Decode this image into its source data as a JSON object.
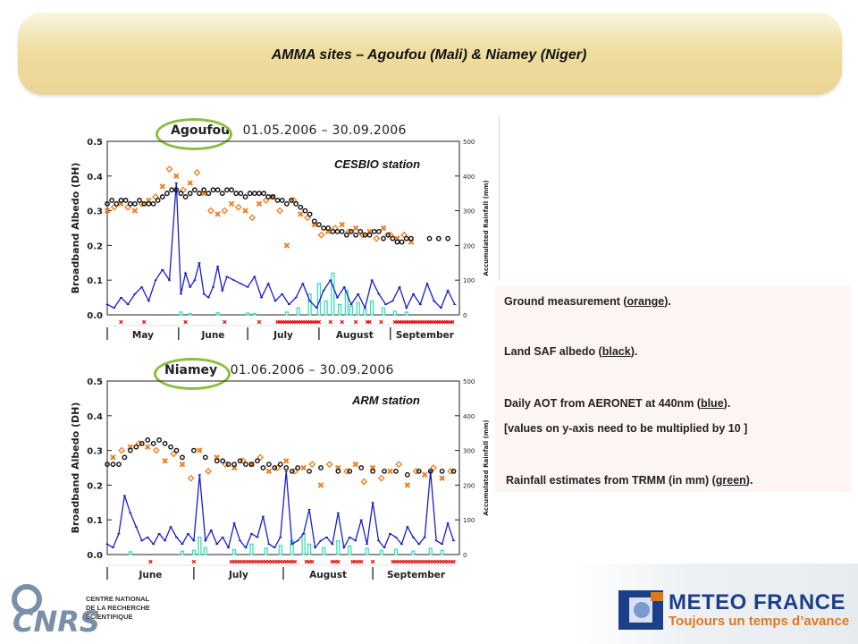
{
  "page": {
    "title": "AMMA sites – Agoufou (Mali) & Niamey (Niger)"
  },
  "legend_panel": {
    "rows": [
      {
        "prefix": "Ground measurement (",
        "key": "orange",
        "suffix": ")."
      },
      {
        "prefix": "Land SAF albedo (",
        "key": "black",
        "suffix": ")."
      },
      {
        "prefix": "Daily AOT from AERONET at 440nm (",
        "key": "blue",
        "suffix": ")."
      },
      {
        "prefix": "[values on y-axis need to be multiplied by 10 ]",
        "key": "",
        "suffix": ""
      },
      {
        "prefix": "Rainfall estimates from TRMM (in mm) (",
        "key": "green",
        "suffix": ")."
      }
    ]
  },
  "logos": {
    "cnrs_letters": "CNRS",
    "cnrs_lines": [
      "CENTRE NATIONAL",
      "DE LA RECHERCHE",
      "SCIENTIFIQUE"
    ],
    "meteo_name": "METEO FRANCE",
    "meteo_tagline": "Toujours un temps d’avance"
  },
  "colors": {
    "ground": "#f07c1e",
    "landsaf": "#111111",
    "aot": "#1a1ec8",
    "rain": "#2fdcb4",
    "missing": "#e01010",
    "ring": "#8cbd3e"
  },
  "chart_data": [
    {
      "type": "scatter",
      "site": "Agoufou",
      "dates": "01.05.2006  –  30.09.2006",
      "station": "CESBIO station",
      "ylabel": "Broadband Albedo (DH)",
      "y2label": "Accumulated Rainfall (mm)",
      "ylim": [
        0,
        0.5
      ],
      "y2lim": [
        0,
        500
      ],
      "yticks": [
        "0.0",
        "0.1",
        "0.2",
        "0.3",
        "0.4",
        "0.5"
      ],
      "y2ticks": [
        "0",
        "100",
        "200",
        "300",
        "400",
        "500"
      ],
      "ndays": 153,
      "months": [
        {
          "label": "May",
          "start": 0,
          "end": 31
        },
        {
          "label": "June",
          "start": 31,
          "end": 61
        },
        {
          "label": "July",
          "start": 61,
          "end": 92
        },
        {
          "label": "August",
          "start": 92,
          "end": 123
        },
        {
          "label": "September",
          "start": 123,
          "end": 153
        }
      ],
      "series": [
        {
          "key": "landsaf",
          "style": "circle",
          "x": [
            0,
            2,
            4,
            6,
            8,
            10,
            12,
            14,
            16,
            18,
            20,
            22,
            24,
            26,
            28,
            30,
            32,
            34,
            36,
            38,
            40,
            42,
            44,
            46,
            48,
            50,
            52,
            54,
            56,
            58,
            60,
            62,
            64,
            66,
            68,
            70,
            72,
            74,
            76,
            78,
            80,
            82,
            84,
            86,
            88,
            90,
            92,
            94,
            96,
            98,
            100,
            102,
            104,
            106,
            108,
            110,
            112,
            114,
            116,
            118,
            120,
            122,
            124,
            126,
            128,
            130,
            132,
            140,
            144,
            148
          ],
          "y": [
            0.32,
            0.33,
            0.32,
            0.33,
            0.33,
            0.32,
            0.32,
            0.33,
            0.32,
            0.32,
            0.32,
            0.33,
            0.34,
            0.35,
            0.36,
            0.36,
            0.35,
            0.34,
            0.35,
            0.36,
            0.35,
            0.36,
            0.35,
            0.36,
            0.36,
            0.35,
            0.36,
            0.36,
            0.35,
            0.35,
            0.34,
            0.35,
            0.35,
            0.35,
            0.35,
            0.34,
            0.34,
            0.33,
            0.33,
            0.32,
            0.33,
            0.32,
            0.31,
            0.3,
            0.29,
            0.27,
            0.26,
            0.25,
            0.25,
            0.24,
            0.24,
            0.24,
            0.23,
            0.24,
            0.23,
            0.24,
            0.23,
            0.23,
            0.24,
            0.24,
            0.22,
            0.23,
            0.22,
            0.21,
            0.21,
            0.22,
            0.22,
            0.22,
            0.22,
            0.22
          ]
        },
        {
          "key": "ground",
          "style": "x",
          "x": [
            0,
            3,
            6,
            9,
            12,
            15,
            18,
            21,
            24,
            27,
            30,
            33,
            36,
            39,
            42,
            45,
            48,
            51,
            54,
            57,
            60,
            63,
            66,
            69,
            72,
            75,
            78,
            81,
            84,
            87,
            90,
            93,
            96,
            99,
            102,
            105,
            108,
            111,
            114,
            117,
            120,
            123,
            126,
            129,
            132
          ],
          "y": [
            0.3,
            0.31,
            0.32,
            0.31,
            0.3,
            0.32,
            0.33,
            0.34,
            0.37,
            0.42,
            0.4,
            0.36,
            0.38,
            0.41,
            0.35,
            0.3,
            0.29,
            0.3,
            0.32,
            0.31,
            0.3,
            0.28,
            0.32,
            0.33,
            0.34,
            0.3,
            0.2,
            0.33,
            0.29,
            0.28,
            0.26,
            0.23,
            0.24,
            0.25,
            0.26,
            0.24,
            0.25,
            0.23,
            0.24,
            0.22,
            0.25,
            0.23,
            0.22,
            0.23,
            0.21
          ]
        },
        {
          "key": "aot",
          "style": "line",
          "x": [
            0,
            3,
            6,
            9,
            12,
            15,
            18,
            21,
            24,
            27,
            30,
            32,
            34,
            36,
            38,
            40,
            42,
            44,
            46,
            48,
            50,
            52,
            55,
            58,
            61,
            64,
            67,
            70,
            73,
            76,
            79,
            82,
            85,
            88,
            91,
            94,
            97,
            100,
            103,
            106,
            109,
            112,
            115,
            118,
            121,
            124,
            127,
            130,
            133,
            136,
            139,
            142,
            145,
            148,
            151
          ],
          "y": [
            0.03,
            0.02,
            0.05,
            0.03,
            0.06,
            0.08,
            0.04,
            0.1,
            0.13,
            0.1,
            0.38,
            0.06,
            0.12,
            0.08,
            0.1,
            0.15,
            0.06,
            0.05,
            0.08,
            0.14,
            0.07,
            0.11,
            0.1,
            0.09,
            0.08,
            0.11,
            0.05,
            0.09,
            0.04,
            0.06,
            0.03,
            0.05,
            0.09,
            0.04,
            0.02,
            0.07,
            0.1,
            0.05,
            0.08,
            0.03,
            0.06,
            0.02,
            0.1,
            0.06,
            0.03,
            0.04,
            0.08,
            0.02,
            0.06,
            0.03,
            0.09,
            0.04,
            0.02,
            0.07,
            0.03
          ]
        },
        {
          "key": "rain",
          "style": "bar",
          "x": [
            32,
            36,
            48,
            61,
            64,
            78,
            83,
            88,
            92,
            95,
            98,
            101,
            104,
            106,
            109,
            112,
            115,
            120,
            125,
            130
          ],
          "y": [
            8,
            4,
            6,
            5,
            4,
            8,
            20,
            60,
            90,
            40,
            120,
            30,
            70,
            25,
            35,
            15,
            40,
            20,
            10,
            8
          ]
        }
      ],
      "missing_days": [
        6,
        16,
        34,
        51,
        66,
        74,
        75,
        76,
        77,
        78,
        79,
        80,
        81,
        82,
        83,
        84,
        85,
        86,
        87,
        88,
        89,
        90,
        91,
        92,
        97,
        102,
        108,
        113,
        114,
        119,
        125,
        126,
        127,
        128,
        129,
        130,
        131,
        132,
        133,
        134,
        135,
        136,
        137,
        138,
        139,
        140,
        141,
        142,
        143,
        144,
        145,
        146,
        147,
        148,
        149,
        150
      ]
    },
    {
      "type": "scatter",
      "site": "Niamey",
      "dates": "01.06.2006  –  30.09.2006",
      "station": "ARM station",
      "ylabel": "Broadband Albedo (DH)",
      "y2label": "Accumulated Rainfall (mm)",
      "ylim": [
        0,
        0.5
      ],
      "y2lim": [
        0,
        500
      ],
      "yticks": [
        "0.0",
        "0.1",
        "0.2",
        "0.3",
        "0.4",
        "0.5"
      ],
      "y2ticks": [
        "0",
        "100",
        "200",
        "300",
        "400",
        "500"
      ],
      "ndays": 122,
      "months": [
        {
          "label": "June",
          "start": 0,
          "end": 30
        },
        {
          "label": "July",
          "start": 30,
          "end": 61
        },
        {
          "label": "August",
          "start": 61,
          "end": 92
        },
        {
          "label": "September",
          "start": 92,
          "end": 122
        }
      ],
      "series": [
        {
          "key": "landsaf",
          "style": "circle",
          "x": [
            0,
            2,
            4,
            6,
            8,
            10,
            12,
            14,
            16,
            18,
            20,
            22,
            24,
            26,
            30,
            34,
            38,
            40,
            42,
            44,
            46,
            48,
            50,
            52,
            54,
            56,
            58,
            60,
            62,
            64,
            66,
            70,
            74,
            80,
            84,
            88,
            92,
            96,
            100,
            104,
            108,
            112,
            116,
            120
          ],
          "y": [
            0.26,
            0.26,
            0.26,
            0.28,
            0.3,
            0.31,
            0.32,
            0.33,
            0.32,
            0.33,
            0.32,
            0.31,
            0.3,
            0.28,
            0.3,
            0.28,
            0.27,
            0.27,
            0.26,
            0.26,
            0.27,
            0.26,
            0.26,
            0.27,
            0.25,
            0.26,
            0.25,
            0.26,
            0.25,
            0.24,
            0.25,
            0.24,
            0.25,
            0.24,
            0.24,
            0.25,
            0.24,
            0.24,
            0.24,
            0.23,
            0.24,
            0.24,
            0.24,
            0.24
          ]
        },
        {
          "key": "ground",
          "style": "x",
          "x": [
            2,
            5,
            8,
            11,
            14,
            17,
            20,
            23,
            26,
            29,
            32,
            35,
            38,
            41,
            44,
            47,
            50,
            53,
            56,
            59,
            62,
            65,
            68,
            71,
            74,
            77,
            80,
            83,
            86,
            89,
            92,
            95,
            98,
            101,
            104,
            107,
            110,
            113,
            116,
            119
          ],
          "y": [
            0.28,
            0.3,
            0.31,
            0.32,
            0.31,
            0.3,
            0.27,
            0.29,
            0.26,
            0.22,
            0.3,
            0.24,
            0.28,
            0.26,
            0.25,
            0.27,
            0.26,
            0.28,
            0.24,
            0.25,
            0.27,
            0.24,
            0.25,
            0.26,
            0.2,
            0.26,
            0.25,
            0.24,
            0.26,
            0.21,
            0.25,
            0.22,
            0.24,
            0.26,
            0.2,
            0.24,
            0.23,
            0.25,
            0.22,
            0.24
          ]
        },
        {
          "key": "aot",
          "style": "line",
          "x": [
            0,
            2,
            4,
            6,
            8,
            10,
            12,
            14,
            16,
            18,
            20,
            22,
            24,
            26,
            28,
            30,
            32,
            34,
            36,
            38,
            40,
            42,
            44,
            46,
            48,
            50,
            52,
            54,
            56,
            58,
            60,
            62,
            64,
            66,
            68,
            70,
            72,
            74,
            76,
            78,
            80,
            82,
            84,
            86,
            88,
            90,
            92,
            94,
            96,
            98,
            100,
            102,
            104,
            106,
            108,
            110,
            112,
            114,
            116,
            118,
            120
          ],
          "y": [
            0.03,
            0.02,
            0.06,
            0.17,
            0.12,
            0.08,
            0.04,
            0.05,
            0.03,
            0.06,
            0.04,
            0.08,
            0.05,
            0.03,
            0.06,
            0.04,
            0.23,
            0.04,
            0.07,
            0.03,
            0.05,
            0.02,
            0.09,
            0.04,
            0.02,
            0.06,
            0.05,
            0.11,
            0.03,
            0.02,
            0.05,
            0.24,
            0.03,
            0.04,
            0.06,
            0.13,
            0.02,
            0.04,
            0.05,
            0.03,
            0.12,
            0.02,
            0.05,
            0.04,
            0.1,
            0.03,
            0.15,
            0.04,
            0.02,
            0.06,
            0.05,
            0.03,
            0.08,
            0.05,
            0.03,
            0.05,
            0.24,
            0.04,
            0.03,
            0.09,
            0.04
          ]
        },
        {
          "key": "rain",
          "style": "bar",
          "x": [
            8,
            26,
            30,
            32,
            34,
            44,
            50,
            55,
            60,
            64,
            68,
            70,
            75,
            80,
            84,
            90,
            95,
            100,
            106,
            112,
            116
          ],
          "y": [
            8,
            10,
            12,
            50,
            20,
            14,
            30,
            18,
            26,
            40,
            60,
            30,
            20,
            40,
            25,
            18,
            12,
            15,
            10,
            18,
            12
          ]
        }
      ],
      "missing_days": [
        15,
        30,
        43,
        44,
        45,
        46,
        47,
        48,
        49,
        50,
        51,
        52,
        53,
        54,
        55,
        56,
        57,
        58,
        59,
        60,
        61,
        62,
        63,
        64,
        65,
        69,
        70,
        71,
        78,
        79,
        80,
        85,
        86,
        87,
        88,
        92,
        99,
        100,
        101,
        102,
        103,
        104,
        105,
        106,
        107,
        108,
        109,
        110,
        111,
        112,
        113,
        114,
        115,
        116,
        117,
        118,
        119,
        120
      ]
    }
  ]
}
